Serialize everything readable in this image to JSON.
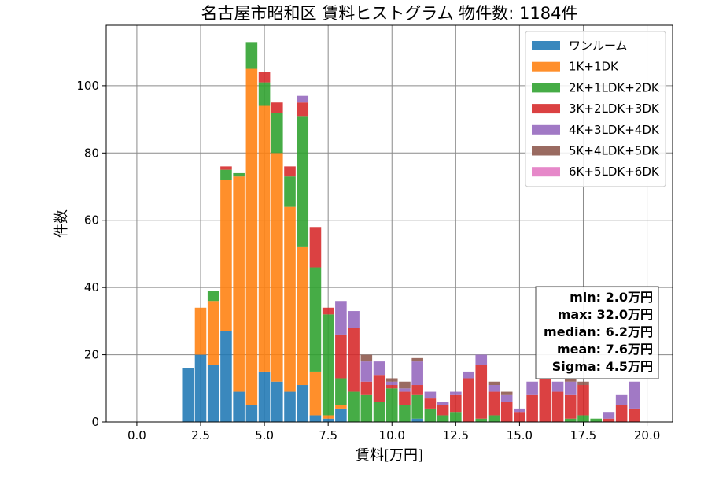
{
  "chart_data": {
    "type": "bar",
    "stacked": true,
    "title": "名古屋市昭和区 賃料ヒストグラム 物件数: 1184件",
    "xlabel": "賃料[万円]",
    "ylabel": "件数",
    "xlim": [
      -1.2,
      21.0
    ],
    "ylim": [
      0,
      118
    ],
    "xticks": [
      0.0,
      2.5,
      5.0,
      7.5,
      10.0,
      12.5,
      15.0,
      17.5,
      20.0
    ],
    "xtick_labels": [
      "0.0",
      "2.5",
      "5.0",
      "7.5",
      "10.0",
      "12.5",
      "15.0",
      "17.5",
      "20.0"
    ],
    "yticks": [
      0,
      20,
      40,
      60,
      80,
      100
    ],
    "ytick_labels": [
      "0",
      "20",
      "40",
      "60",
      "80",
      "100"
    ],
    "grid": true,
    "legend_position": "top-right",
    "bin_width": 0.5,
    "bin_centers": [
      2.0,
      2.5,
      3.0,
      3.5,
      4.0,
      4.5,
      5.0,
      5.5,
      6.0,
      6.5,
      7.0,
      7.5,
      8.0,
      8.5,
      9.0,
      9.5,
      10.0,
      10.5,
      11.0,
      11.5,
      12.0,
      12.5,
      13.0,
      13.5,
      14.0,
      14.5,
      15.0,
      15.5,
      16.0,
      16.5,
      17.0,
      17.5,
      18.0,
      18.5,
      19.0,
      19.5
    ],
    "series": [
      {
        "name": "ワンルーム",
        "color": "#1f77b4",
        "values": [
          16,
          20,
          17,
          27,
          9,
          5,
          15,
          12,
          9,
          11,
          2,
          1,
          4,
          0,
          0,
          0,
          0,
          0,
          1,
          0,
          0,
          0,
          0,
          0,
          0,
          0,
          0,
          0,
          0,
          0,
          0,
          0,
          0,
          0,
          0,
          0
        ]
      },
      {
        "name": "1K+1DK",
        "color": "#ff7f0e",
        "values": [
          0,
          14,
          19,
          45,
          64,
          100,
          79,
          68,
          55,
          41,
          13,
          1,
          1,
          0,
          0,
          0,
          0,
          0,
          0,
          0,
          0,
          0,
          0,
          0,
          0,
          0,
          0,
          0,
          0,
          0,
          0,
          0,
          0,
          0,
          0,
          0
        ]
      },
      {
        "name": "2K+1LDK+2DK",
        "color": "#2ca02c",
        "values": [
          0,
          0,
          3,
          3,
          1,
          8,
          7,
          12,
          9,
          39,
          31,
          30,
          8,
          9,
          8,
          6,
          10,
          5,
          7,
          4,
          2,
          3,
          0,
          1,
          2,
          0,
          0,
          0,
          0,
          0,
          1,
          2,
          1,
          0,
          0,
          0
        ]
      },
      {
        "name": "3K+2LDK+3DK",
        "color": "#d62728",
        "values": [
          0,
          0,
          0,
          1,
          0,
          0,
          3,
          3,
          3,
          4,
          12,
          2,
          13,
          19,
          4,
          8,
          1,
          4,
          3,
          3,
          3,
          5,
          13,
          16,
          7,
          6,
          3,
          8,
          13,
          9,
          7,
          9,
          0,
          1,
          5,
          4
        ]
      },
      {
        "name": "4K+3LDK+4DK",
        "color": "#9467bd",
        "values": [
          0,
          0,
          0,
          0,
          0,
          0,
          0,
          0,
          0,
          2,
          0,
          0,
          10,
          5,
          6,
          4,
          1,
          1,
          7,
          2,
          1,
          1,
          2,
          3,
          2,
          2,
          1,
          4,
          0,
          3,
          4,
          0,
          0,
          2,
          3,
          8
        ]
      },
      {
        "name": "5K+4LDK+5DK",
        "color": "#8c564b",
        "values": [
          0,
          0,
          0,
          0,
          0,
          0,
          0,
          0,
          0,
          0,
          0,
          0,
          0,
          0,
          2,
          0,
          1,
          2,
          1,
          0,
          0,
          0,
          0,
          0,
          1,
          1,
          0,
          0,
          0,
          0,
          1,
          1,
          0,
          0,
          0,
          0
        ]
      },
      {
        "name": "6K+5LDK+6DK",
        "color": "#e377c2",
        "values": [
          0,
          0,
          0,
          0,
          0,
          0,
          0,
          0,
          0,
          0,
          0,
          0,
          0,
          0,
          0,
          0,
          0,
          0,
          0,
          0,
          0,
          0,
          0,
          0,
          0,
          0,
          0,
          0,
          0,
          0,
          0,
          0,
          0,
          0,
          0,
          0
        ]
      }
    ],
    "stats": {
      "min": "min: 2.0万円",
      "max": "max: 32.0万円",
      "median": "median: 6.2万円",
      "mean": "mean: 7.6万円",
      "sigma": "Sigma: 4.5万円"
    }
  }
}
